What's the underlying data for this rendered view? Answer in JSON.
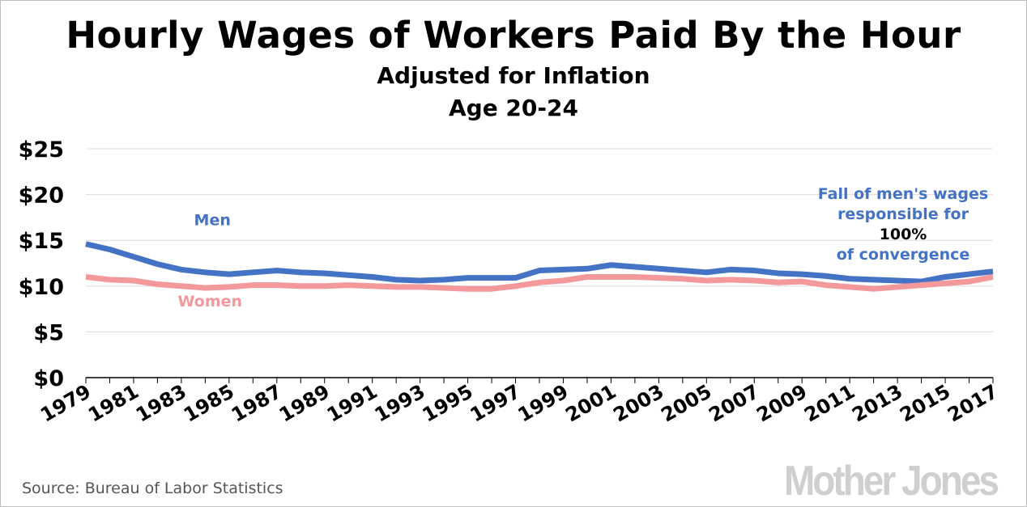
{
  "chart_data": {
    "type": "line",
    "title": "Hourly Wages of Workers Paid By the Hour",
    "subtitle": [
      "Adjusted for Inflation",
      "Age 20-24"
    ],
    "x": [
      1979,
      1980,
      1981,
      1982,
      1983,
      1984,
      1985,
      1986,
      1987,
      1988,
      1989,
      1990,
      1991,
      1992,
      1993,
      1994,
      1995,
      1996,
      1997,
      1998,
      1999,
      2000,
      2001,
      2002,
      2003,
      2004,
      2005,
      2006,
      2007,
      2008,
      2009,
      2010,
      2011,
      2012,
      2013,
      2014,
      2015,
      2016,
      2017
    ],
    "x_tick_labels": [
      "1979",
      "1981",
      "1983",
      "1985",
      "1987",
      "1989",
      "1991",
      "1993",
      "1995",
      "1997",
      "1999",
      "2001",
      "2003",
      "2005",
      "2007",
      "2009",
      "2011",
      "2013",
      "2015",
      "2017"
    ],
    "y_tick_labels": [
      "$0",
      "$5",
      "$10",
      "$15",
      "$20",
      "$25"
    ],
    "y_ticks": [
      0,
      5,
      10,
      15,
      20,
      25
    ],
    "ylim": [
      0,
      25
    ],
    "xlim": [
      1979,
      2017
    ],
    "grid": true,
    "series": [
      {
        "name": "Men",
        "color": "#4472c4",
        "values": [
          14.6,
          14.0,
          13.2,
          12.4,
          11.8,
          11.5,
          11.3,
          11.5,
          11.7,
          11.5,
          11.4,
          11.2,
          11.0,
          10.7,
          10.6,
          10.7,
          10.9,
          10.9,
          10.9,
          11.7,
          11.8,
          11.9,
          12.3,
          12.1,
          11.9,
          11.7,
          11.5,
          11.8,
          11.7,
          11.4,
          11.3,
          11.1,
          10.8,
          10.7,
          10.6,
          10.5,
          11.0,
          11.3,
          11.6
        ]
      },
      {
        "name": "Women",
        "color": "#f4999b",
        "values": [
          11.0,
          10.7,
          10.6,
          10.2,
          10.0,
          9.8,
          9.9,
          10.1,
          10.1,
          10.0,
          10.0,
          10.1,
          10.0,
          9.9,
          9.9,
          9.8,
          9.7,
          9.7,
          10.0,
          10.4,
          10.6,
          11.0,
          11.0,
          11.0,
          10.9,
          10.8,
          10.6,
          10.7,
          10.6,
          10.4,
          10.5,
          10.1,
          9.9,
          9.7,
          9.9,
          10.1,
          10.3,
          10.5,
          11.0
        ]
      }
    ],
    "annotation": {
      "lines": [
        "Fall of men's wages",
        "responsible for",
        "100%",
        "of convergence"
      ],
      "colors": [
        "#4472c4",
        "#4472c4",
        "#000000",
        "#4472c4"
      ]
    }
  },
  "source": "Source: Bureau of Labor Statistics",
  "logo": "Mother Jones"
}
